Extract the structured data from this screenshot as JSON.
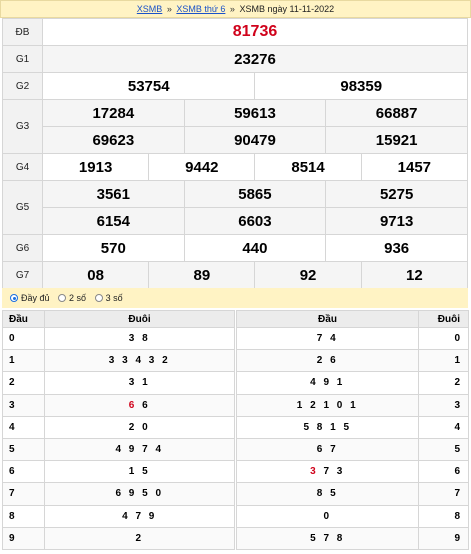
{
  "breadcrumb": {
    "link1": "XSMB",
    "sep": "»",
    "link2": "XSMB thứ 6",
    "current": "XSMB ngày 11-11-2022"
  },
  "results": {
    "db": {
      "label": "ĐB",
      "numbers": [
        "81736"
      ]
    },
    "g1": {
      "label": "G1",
      "numbers": [
        "23276"
      ]
    },
    "g2": {
      "label": "G2",
      "numbers": [
        "53754",
        "98359"
      ]
    },
    "g3": {
      "label": "G3",
      "numbers": [
        "17284",
        "59613",
        "66887",
        "69623",
        "90479",
        "15921"
      ]
    },
    "g4": {
      "label": "G4",
      "numbers": [
        "1913",
        "9442",
        "8514",
        "1457"
      ]
    },
    "g5": {
      "label": "G5",
      "numbers": [
        "3561",
        "5865",
        "5275",
        "6154",
        "6603",
        "9713"
      ]
    },
    "g6": {
      "label": "G6",
      "numbers": [
        "570",
        "440",
        "936"
      ]
    },
    "g7": {
      "label": "G7",
      "numbers": [
        "08",
        "89",
        "92",
        "12"
      ]
    }
  },
  "options": {
    "full": "Đầy đủ",
    "two": "2 số",
    "three": "3 số",
    "selected": "full"
  },
  "dau_table": {
    "col_key": "Đầu",
    "col_val": "Đuôi",
    "rows": [
      {
        "k": "0",
        "v": "3 8"
      },
      {
        "k": "1",
        "v": "3 3 4 3 2"
      },
      {
        "k": "2",
        "v": "3 1"
      },
      {
        "k": "3",
        "v_red": "6",
        "v": " 6"
      },
      {
        "k": "4",
        "v": "2 0"
      },
      {
        "k": "5",
        "v": "4 9 7 4"
      },
      {
        "k": "6",
        "v": "1 5"
      },
      {
        "k": "7",
        "v": "6 9 5 0"
      },
      {
        "k": "8",
        "v": "4 7 9"
      },
      {
        "k": "9",
        "v": "2"
      }
    ]
  },
  "duoi_table": {
    "col_val": "Đầu",
    "col_key": "Đuôi",
    "rows": [
      {
        "k": "0",
        "v": "7 4"
      },
      {
        "k": "1",
        "v": "2 6"
      },
      {
        "k": "2",
        "v": "4 9 1"
      },
      {
        "k": "3",
        "v": "1 2 1 0 1"
      },
      {
        "k": "4",
        "v": "5 8 1 5"
      },
      {
        "k": "5",
        "v": "6 7"
      },
      {
        "k": "6",
        "v_red": "3",
        "v": " 7 3"
      },
      {
        "k": "7",
        "v": "8 5"
      },
      {
        "k": "8",
        "v": "0"
      },
      {
        "k": "9",
        "v": "5 7 8"
      }
    ]
  },
  "colors": {
    "special": "#d0021b",
    "header_bg": "#fff3c4",
    "link": "#1a52c9"
  }
}
